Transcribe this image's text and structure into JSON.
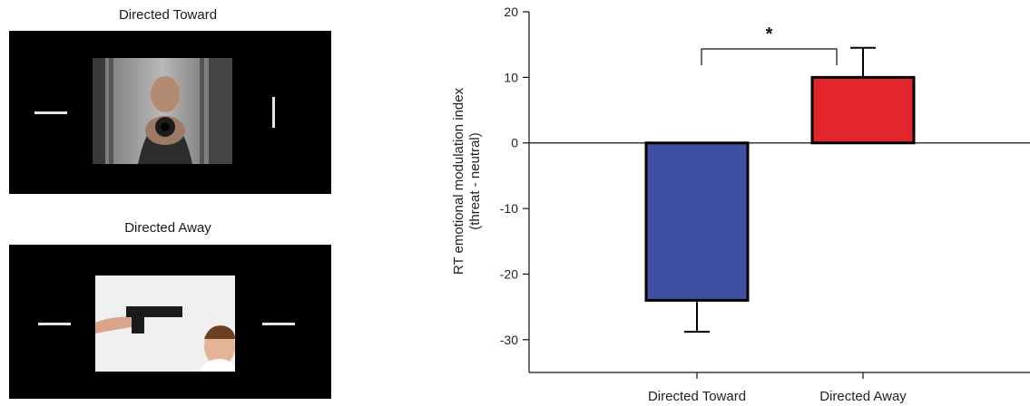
{
  "stimuli": {
    "toward": {
      "title": "Directed Toward",
      "image": "man-pointing-gun-at-viewer",
      "cue_left": "horizontal-line",
      "cue_right": "vertical-line"
    },
    "away": {
      "title": "Directed Away",
      "image": "gun-pointed-at-child",
      "cue_left": "horizontal-line",
      "cue_right": "horizontal-line"
    }
  },
  "chart_data": {
    "type": "bar",
    "categories": [
      "Directed Toward",
      "Directed Away"
    ],
    "values": [
      -24,
      10
    ],
    "errors": [
      4.8,
      4.5
    ],
    "colors": [
      "#3f4fa1",
      "#e1252a"
    ],
    "ylabel_lines": [
      "RT emotional modulation index",
      "(threat - neutral)"
    ],
    "ylim": [
      -35,
      20
    ],
    "yticks": [
      -30,
      -20,
      -10,
      0,
      10,
      20
    ],
    "significance": "*",
    "grid": false
  }
}
